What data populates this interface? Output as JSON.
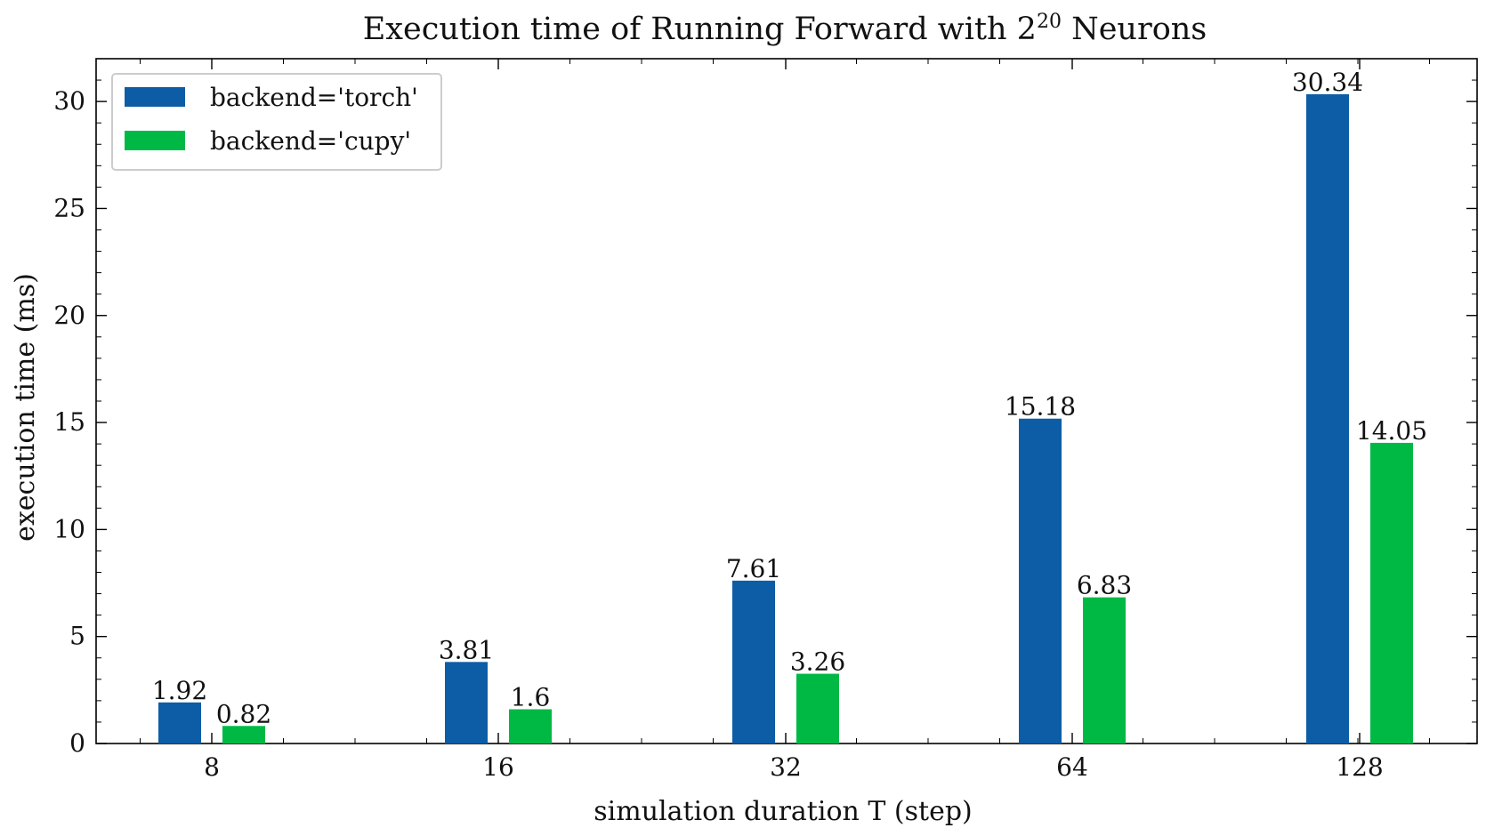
{
  "chart_data": {
    "type": "bar",
    "title": "Execution time of Running Forward with 2",
    "title_superscript": "20",
    "title_suffix": " Neurons",
    "xlabel": "simulation duration T (step)",
    "ylabel": "execution time (ms)",
    "categories": [
      "8",
      "16",
      "32",
      "64",
      "128"
    ],
    "series": [
      {
        "name": "backend='torch'",
        "color": "#0c5da5",
        "values": [
          1.92,
          3.81,
          7.61,
          15.18,
          30.34
        ]
      },
      {
        "name": "backend='cupy'",
        "color": "#00b945",
        "values": [
          0.82,
          1.6,
          3.26,
          6.83,
          14.05
        ]
      }
    ],
    "data_labels": [
      [
        "1.92",
        "3.81",
        "7.61",
        "15.18",
        "30.34"
      ],
      [
        "0.82",
        "1.6",
        "3.26",
        "6.83",
        "14.05"
      ]
    ],
    "ylim": [
      0,
      32
    ],
    "yticks": [
      "0",
      "5",
      "10",
      "15",
      "20",
      "25",
      "30"
    ],
    "grid": false,
    "legend_position": "top-left"
  }
}
